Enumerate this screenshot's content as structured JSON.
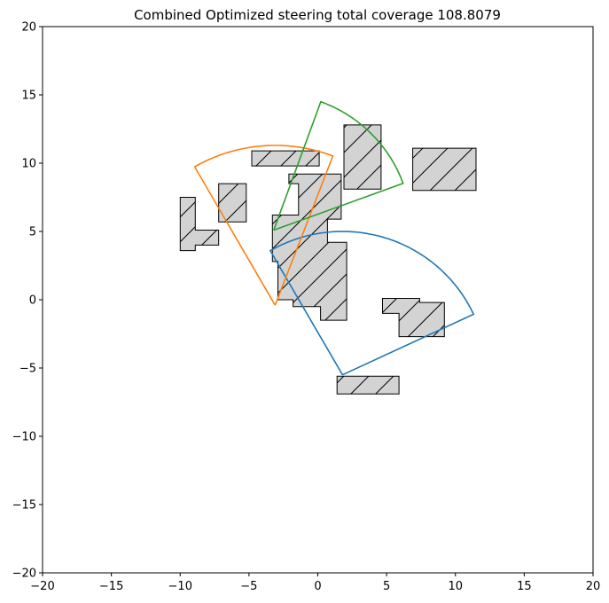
{
  "chart_data": {
    "type": "scatter",
    "title": "Combined Optimized steering total coverage 108.8079",
    "xlabel": "",
    "ylabel": "",
    "xlim": [
      -20,
      20
    ],
    "ylim": [
      -20,
      20
    ],
    "x_ticks": [
      -20,
      -15,
      -10,
      -5,
      0,
      5,
      10,
      15,
      20
    ],
    "y_ticks": [
      -20,
      -15,
      -10,
      -5,
      0,
      5,
      10,
      15,
      20
    ],
    "grid": false,
    "legend": "none",
    "obstacle_style": {
      "fill": "#d3d3d3",
      "stroke": "#000000",
      "hatch": "/"
    },
    "obstacles": [
      {
        "points": [
          [
            -10,
            7.5
          ],
          [
            -8.9,
            7.5
          ],
          [
            -8.9,
            5.1
          ],
          [
            -7.2,
            5.1
          ],
          [
            -7.2,
            4.0
          ],
          [
            -8.9,
            4.0
          ],
          [
            -8.9,
            3.6
          ],
          [
            -10,
            3.6
          ]
        ]
      },
      {
        "points": [
          [
            -7.2,
            8.5
          ],
          [
            -5.2,
            8.5
          ],
          [
            -5.2,
            5.7
          ],
          [
            -7.2,
            5.7
          ]
        ]
      },
      {
        "points": [
          [
            -4.8,
            10.9
          ],
          [
            0.1,
            10.9
          ],
          [
            0.1,
            9.8
          ],
          [
            -4.8,
            9.8
          ]
        ]
      },
      {
        "points": [
          [
            -2.1,
            9.2
          ],
          [
            1.7,
            9.2
          ],
          [
            1.7,
            5.9
          ],
          [
            0.7,
            5.9
          ],
          [
            0.7,
            4.2
          ],
          [
            2.1,
            4.2
          ],
          [
            2.1,
            -1.5
          ],
          [
            0.2,
            -1.5
          ],
          [
            0.2,
            -0.5
          ],
          [
            -1.8,
            -0.5
          ],
          [
            -1.8,
            0.0
          ],
          [
            -2.9,
            0.0
          ],
          [
            -2.9,
            2.8
          ],
          [
            -3.3,
            2.8
          ],
          [
            -3.3,
            6.2
          ],
          [
            -1.4,
            6.2
          ],
          [
            -1.4,
            8.5
          ],
          [
            -2.1,
            8.5
          ]
        ]
      },
      {
        "points": [
          [
            1.9,
            12.8
          ],
          [
            4.6,
            12.8
          ],
          [
            4.6,
            8.1
          ],
          [
            1.9,
            8.1
          ]
        ]
      },
      {
        "points": [
          [
            6.9,
            11.1
          ],
          [
            11.5,
            11.1
          ],
          [
            11.5,
            8.0
          ],
          [
            6.9,
            8.0
          ]
        ]
      },
      {
        "points": [
          [
            4.7,
            0.1
          ],
          [
            7.4,
            0.1
          ],
          [
            7.4,
            -0.2
          ],
          [
            9.2,
            -0.2
          ],
          [
            9.2,
            -2.7
          ],
          [
            5.9,
            -2.7
          ],
          [
            5.9,
            -1.0
          ],
          [
            4.7,
            -1.0
          ]
        ]
      },
      {
        "points": [
          [
            1.4,
            -5.6
          ],
          [
            5.9,
            -5.6
          ],
          [
            5.9,
            -6.9
          ],
          [
            1.4,
            -6.9
          ]
        ]
      }
    ],
    "series": [
      {
        "color": "#1f77b4",
        "apex": [
          1.8,
          -5.5
        ],
        "radius": 10.5,
        "start_deg": 120,
        "end_deg": 25
      },
      {
        "color": "#ff7f0e",
        "apex": [
          -3.1,
          -0.4
        ],
        "radius": 11.7,
        "start_deg": 69,
        "end_deg": 120
      },
      {
        "color": "#2ca02c",
        "apex": [
          -3.2,
          5.1
        ],
        "radius": 10.0,
        "start_deg": 20,
        "end_deg": 70
      }
    ]
  }
}
